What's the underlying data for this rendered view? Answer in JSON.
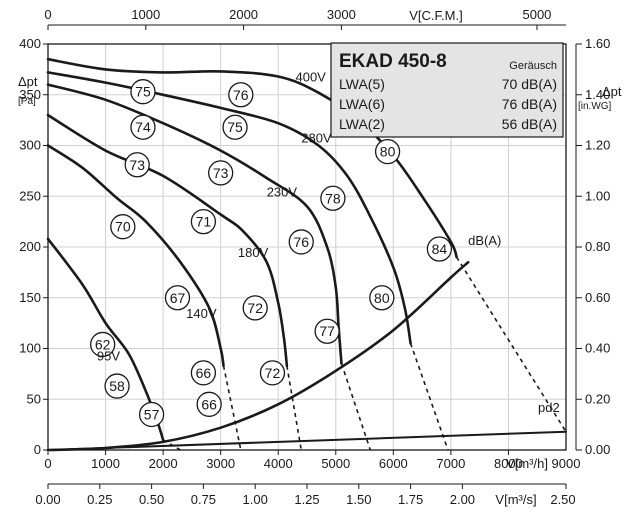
{
  "chart_data": {
    "type": "line",
    "title": "EKAD 450-8",
    "legend": {
      "header_right": "Geräusch",
      "rows": [
        {
          "label": "LWA(5)",
          "value": "70 dB(A)"
        },
        {
          "label": "LWA(6)",
          "value": "76 dB(A)"
        },
        {
          "label": "LWA(2)",
          "value": "56 dB(A)"
        }
      ]
    },
    "axes": {
      "x_bottom": {
        "label": "V[m³/h]",
        "range": [
          0,
          9000
        ],
        "ticks": [
          0,
          1000,
          2000,
          3000,
          4000,
          5000,
          6000,
          7000,
          8000
        ],
        "tick_labels": [
          "0",
          "1000",
          "2000",
          "3000",
          "4000",
          "5000",
          "6000",
          "7000",
          "8000"
        ],
        "end_label": "9000"
      },
      "x_bottom2": {
        "label": "V[m³/s]",
        "range": [
          0,
          2.5
        ],
        "ticks": [
          0,
          0.25,
          0.5,
          0.75,
          1.0,
          1.25,
          1.5,
          1.75,
          2.0
        ],
        "tick_labels": [
          "0.00",
          "0.25",
          "0.50",
          "0.75",
          "1.00",
          "1.25",
          "1.50",
          "1.75",
          "2.00"
        ],
        "end_label": "2.50"
      },
      "x_top": {
        "label": "V[C.F.M.]",
        "range": [
          0,
          5297
        ],
        "ticks": [
          0,
          1000,
          2000,
          3000,
          5000
        ],
        "tick_labels": [
          "0",
          "1000",
          "2000",
          "3000",
          "5000"
        ]
      },
      "y_left": {
        "label_main": "Δpt",
        "label_unit": "[Pa]",
        "range": [
          0,
          400
        ],
        "ticks": [
          0,
          50,
          100,
          150,
          200,
          250,
          300,
          350,
          400
        ],
        "tick_labels": [
          "0",
          "50",
          "100",
          "150",
          "200",
          "250",
          "300",
          "350",
          "400"
        ]
      },
      "y_right": {
        "label_main": "Δpt",
        "label_unit": "[in.WG]",
        "range": [
          0,
          1.6
        ],
        "ticks": [
          0,
          0.2,
          0.4,
          0.6,
          0.8,
          1.0,
          1.2,
          1.4,
          1.6
        ],
        "tick_labels": [
          "0.00",
          "0.20",
          "0.40",
          "0.60",
          "0.80",
          "1.00",
          "1.20",
          "1.40",
          "1.60"
        ]
      }
    },
    "series": [
      {
        "name": "400V",
        "points": [
          [
            0,
            385
          ],
          [
            1000,
            375
          ],
          [
            2000,
            372
          ],
          [
            3000,
            373
          ],
          [
            4000,
            368
          ],
          [
            4700,
            352
          ],
          [
            5400,
            325
          ],
          [
            6000,
            290
          ],
          [
            6500,
            250
          ],
          [
            7000,
            205
          ],
          [
            7100,
            190
          ]
        ]
      },
      {
        "name": "280V",
        "points": [
          [
            0,
            372
          ],
          [
            1000,
            362
          ],
          [
            2000,
            350
          ],
          [
            3000,
            337
          ],
          [
            4000,
            322
          ],
          [
            4700,
            300
          ],
          [
            5200,
            270
          ],
          [
            5600,
            230
          ],
          [
            6000,
            180
          ],
          [
            6200,
            140
          ],
          [
            6300,
            105
          ]
        ]
      },
      {
        "name": "230V",
        "points": [
          [
            0,
            360
          ],
          [
            1000,
            345
          ],
          [
            2000,
            322
          ],
          [
            3000,
            295
          ],
          [
            3800,
            268
          ],
          [
            4500,
            240
          ],
          [
            4850,
            200
          ],
          [
            5000,
            160
          ],
          [
            5050,
            120
          ],
          [
            5100,
            85
          ]
        ]
      },
      {
        "name": "180V",
        "points": [
          [
            0,
            330
          ],
          [
            1000,
            295
          ],
          [
            2000,
            270
          ],
          [
            3000,
            232
          ],
          [
            3400,
            215
          ],
          [
            3800,
            185
          ],
          [
            4000,
            145
          ],
          [
            4100,
            110
          ],
          [
            4150,
            83
          ]
        ]
      },
      {
        "name": "140V",
        "points": [
          [
            0,
            300
          ],
          [
            600,
            278
          ],
          [
            1200,
            248
          ],
          [
            1700,
            225
          ],
          [
            2300,
            185
          ],
          [
            2800,
            140
          ],
          [
            3000,
            100
          ],
          [
            3050,
            83
          ]
        ]
      },
      {
        "name": "95V",
        "points": [
          [
            0,
            208
          ],
          [
            600,
            163
          ],
          [
            1000,
            125
          ],
          [
            1400,
            95
          ],
          [
            1700,
            58
          ],
          [
            1900,
            28
          ],
          [
            2000,
            10
          ]
        ]
      },
      {
        "name": "dB(A)",
        "points": [
          [
            0,
            0
          ],
          [
            1000,
            2
          ],
          [
            2000,
            8
          ],
          [
            3000,
            22
          ],
          [
            4000,
            45
          ],
          [
            5000,
            78
          ],
          [
            6000,
            118
          ],
          [
            7000,
            170
          ],
          [
            7300,
            185
          ]
        ]
      },
      {
        "name": "pd2",
        "points": [
          [
            0,
            0
          ],
          [
            9000,
            18
          ]
        ]
      }
    ],
    "dashed": [
      [
        [
          2000,
          10
        ],
        [
          2300,
          0
        ]
      ],
      [
        [
          3050,
          83
        ],
        [
          3350,
          0
        ]
      ],
      [
        [
          4150,
          83
        ],
        [
          4400,
          0
        ]
      ],
      [
        [
          5100,
          85
        ],
        [
          5600,
          0
        ]
      ],
      [
        [
          6300,
          105
        ],
        [
          6950,
          0
        ]
      ],
      [
        [
          7100,
          190
        ],
        [
          9000,
          18
        ]
      ]
    ],
    "circles": [
      {
        "v": "75",
        "x": 1650,
        "y": 353
      },
      {
        "v": "76",
        "x": 3350,
        "y": 350
      },
      {
        "v": "74",
        "x": 1650,
        "y": 318
      },
      {
        "v": "75",
        "x": 3250,
        "y": 318
      },
      {
        "v": "80",
        "x": 5900,
        "y": 294
      },
      {
        "v": "73",
        "x": 1550,
        "y": 281
      },
      {
        "v": "73",
        "x": 3000,
        "y": 273
      },
      {
        "v": "78",
        "x": 4950,
        "y": 248
      },
      {
        "v": "70",
        "x": 1300,
        "y": 220
      },
      {
        "v": "71",
        "x": 2700,
        "y": 225
      },
      {
        "v": "76",
        "x": 4400,
        "y": 205
      },
      {
        "v": "84",
        "x": 6800,
        "y": 198
      },
      {
        "v": "67",
        "x": 2250,
        "y": 150
      },
      {
        "v": "72",
        "x": 3600,
        "y": 140
      },
      {
        "v": "80",
        "x": 5800,
        "y": 150
      },
      {
        "v": "77",
        "x": 4850,
        "y": 117
      },
      {
        "v": "62",
        "x": 950,
        "y": 104
      },
      {
        "v": "66",
        "x": 2700,
        "y": 76
      },
      {
        "v": "72",
        "x": 3900,
        "y": 76
      },
      {
        "v": "58",
        "x": 1200,
        "y": 63
      },
      {
        "v": "66",
        "x": 2800,
        "y": 45
      },
      {
        "v": "57",
        "x": 1800,
        "y": 35
      }
    ],
    "annotations": [
      {
        "text": "400V",
        "x": 4300,
        "y": 363
      },
      {
        "text": "280V",
        "x": 4400,
        "y": 303
      },
      {
        "text": "230V",
        "x": 3800,
        "y": 250
      },
      {
        "text": "180V",
        "x": 3300,
        "y": 190
      },
      {
        "text": "140V",
        "x": 2400,
        "y": 130
      },
      {
        "text": "95V",
        "x": 850,
        "y": 88
      },
      {
        "text": "dB(A)",
        "x": 7300,
        "y": 202
      }
    ],
    "grid": true
  }
}
